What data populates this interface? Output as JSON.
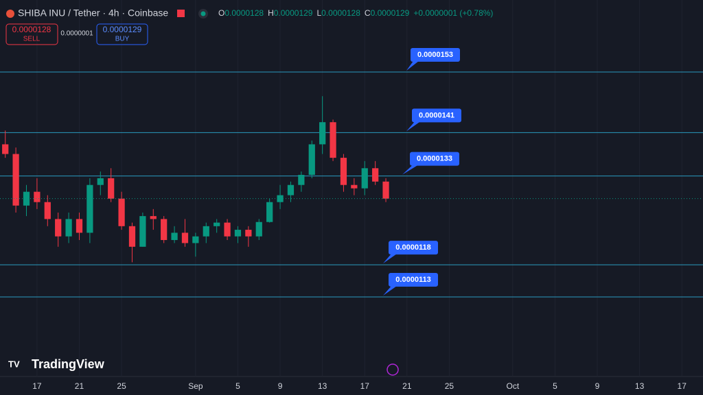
{
  "header": {
    "title": "SHIBA INU / Tether · 4h · Coinbase",
    "ohlc": [
      {
        "key": "O",
        "value": "0.0000128"
      },
      {
        "key": "H",
        "value": "0.0000129"
      },
      {
        "key": "L",
        "value": "0.0000128"
      },
      {
        "key": "C",
        "value": "0.0000129"
      }
    ],
    "change": "+0.0000001 (+0.78%)",
    "sell": {
      "price": "0.0000128",
      "label": "SELL"
    },
    "spread": "0.0000001",
    "buy": {
      "price": "0.0000129",
      "label": "BUY"
    },
    "logo": "TradingView"
  },
  "chart_data": {
    "type": "candlestick",
    "log_scale": true,
    "grid": true,
    "up_color": "#089981",
    "down_color": "#f23645",
    "level_color": "#2a9bbf",
    "label_color": "#2962ff",
    "xlim": [
      -3.5,
      63.0
    ],
    "ylim": [
      1.016e-05,
      1.686e-05
    ],
    "xticks": [
      {
        "value": 0,
        "label": "17"
      },
      {
        "value": 4,
        "label": "21"
      },
      {
        "value": 8,
        "label": "25"
      },
      {
        "value": 15,
        "label": "Sep"
      },
      {
        "value": 19,
        "label": "5"
      },
      {
        "value": 23,
        "label": "9"
      },
      {
        "value": 27,
        "label": "13"
      },
      {
        "value": 31,
        "label": "17"
      },
      {
        "value": 35,
        "label": "21"
      },
      {
        "value": 39,
        "label": "25"
      },
      {
        "value": 45,
        "label": "Oct"
      },
      {
        "value": 49,
        "label": "5"
      },
      {
        "value": 53,
        "label": "9"
      },
      {
        "value": 57,
        "label": "13"
      },
      {
        "value": 61,
        "label": "17"
      }
    ],
    "levels": [
      1.53e-05,
      1.41e-05,
      1.33e-05,
      1.18e-05,
      1.13e-05
    ],
    "x": [
      -3,
      -2,
      -1,
      0,
      1,
      2,
      3,
      4,
      5,
      6,
      7,
      8,
      9,
      10,
      11,
      12,
      13,
      14,
      15,
      16,
      17,
      18,
      19,
      20,
      21,
      22,
      23,
      24,
      25,
      26,
      27,
      28,
      29,
      30,
      31,
      32,
      33
    ],
    "open": [
      1.388e-05,
      1.37e-05,
      1.278e-05,
      1.302e-05,
      1.284e-05,
      1.255e-05,
      1.226e-05,
      1.255e-05,
      1.232e-05,
      1.314e-05,
      1.326e-05,
      1.29e-05,
      1.243e-05,
      1.209e-05,
      1.26e-05,
      1.255e-05,
      1.22e-05,
      1.232e-05,
      1.215e-05,
      1.226e-05,
      1.243e-05,
      1.249e-05,
      1.226e-05,
      1.237e-05,
      1.226e-05,
      1.25e-05,
      1.284e-05,
      1.296e-05,
      1.314e-05,
      1.332e-05,
      1.388e-05,
      1.43e-05,
      1.363e-05,
      1.314e-05,
      1.308e-05,
      1.344e-05,
      1.32e-05
    ],
    "high": [
      1.414e-05,
      1.382e-05,
      1.314e-05,
      1.326e-05,
      1.296e-05,
      1.266e-05,
      1.266e-05,
      1.266e-05,
      1.326e-05,
      1.338e-05,
      1.344e-05,
      1.302e-05,
      1.249e-05,
      1.266e-05,
      1.272e-05,
      1.26e-05,
      1.243e-05,
      1.255e-05,
      1.232e-05,
      1.249e-05,
      1.255e-05,
      1.255e-05,
      1.243e-05,
      1.243e-05,
      1.255e-05,
      1.29e-05,
      1.314e-05,
      1.32e-05,
      1.338e-05,
      1.395e-05,
      1.481e-05,
      1.435e-05,
      1.37e-05,
      1.326e-05,
      1.357e-05,
      1.357e-05,
      1.326e-05
    ],
    "low": [
      1.363e-05,
      1.266e-05,
      1.26e-05,
      1.272e-05,
      1.243e-05,
      1.209e-05,
      1.215e-05,
      1.22e-05,
      1.215e-05,
      1.296e-05,
      1.284e-05,
      1.237e-05,
      1.184e-05,
      1.209e-05,
      1.237e-05,
      1.215e-05,
      1.215e-05,
      1.209e-05,
      1.193e-05,
      1.215e-05,
      1.232e-05,
      1.22e-05,
      1.215e-05,
      1.209e-05,
      1.22e-05,
      1.249e-05,
      1.272e-05,
      1.284e-05,
      1.302e-05,
      1.326e-05,
      1.37e-05,
      1.357e-05,
      1.302e-05,
      1.296e-05,
      1.296e-05,
      1.314e-05,
      1.284e-05
    ],
    "close": [
      1.37e-05,
      1.278e-05,
      1.302e-05,
      1.284e-05,
      1.255e-05,
      1.226e-05,
      1.255e-05,
      1.232e-05,
      1.314e-05,
      1.326e-05,
      1.29e-05,
      1.243e-05,
      1.209e-05,
      1.26e-05,
      1.255e-05,
      1.22e-05,
      1.232e-05,
      1.215e-05,
      1.226e-05,
      1.243e-05,
      1.249e-05,
      1.226e-05,
      1.237e-05,
      1.226e-05,
      1.25e-05,
      1.284e-05,
      1.296e-05,
      1.314e-05,
      1.332e-05,
      1.388e-05,
      1.43e-05,
      1.363e-05,
      1.314e-05,
      1.308e-05,
      1.344e-05,
      1.32e-05,
      1.29e-05
    ]
  }
}
